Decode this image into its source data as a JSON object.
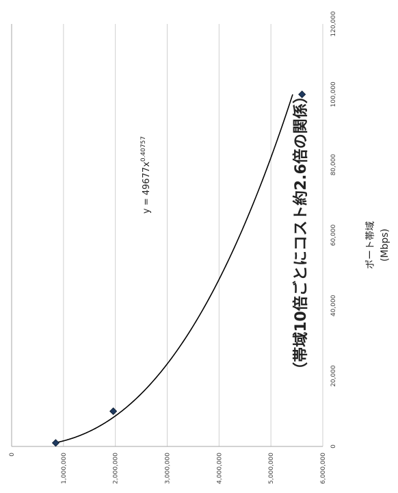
{
  "chart_data": {
    "type": "scatter",
    "orientation": "rotated-90-ccw",
    "title": "（帯域10倍ごとにコスト約2.6倍の関係）",
    "xlabel_line1": "ポート帯域",
    "xlabel_line2": "(Mbps)",
    "ylabel": "",
    "xlim": [
      0,
      120000
    ],
    "ylim": [
      0,
      6000000
    ],
    "x_ticks": [
      0,
      20000,
      40000,
      60000,
      80000,
      100000,
      120000
    ],
    "x_tick_labels": [
      "0",
      "20,000",
      "40,000",
      "60,000",
      "80,000",
      "100,000",
      "120,000"
    ],
    "y_ticks": [
      0,
      1000000,
      2000000,
      3000000,
      4000000,
      5000000,
      6000000
    ],
    "y_tick_labels": [
      "0",
      "1,000,000",
      "2,000,000",
      "3,000,000",
      "4,000,000",
      "5,000,000",
      "6,000,000"
    ],
    "grid": true,
    "series": [
      {
        "points": [
          {
            "x": 1000,
            "y": 850000
          },
          {
            "x": 10000,
            "y": 1960000
          },
          {
            "x": 100000,
            "y": 5600000
          }
        ]
      }
    ],
    "trendline": {
      "type": "power",
      "coefficient": 49677,
      "exponent": 0.40757,
      "x_start": 1000,
      "x_end": 100000,
      "equation_prefix": "y = 49677x",
      "equation_exponent": "0.40757"
    },
    "colors": {
      "marker": "#1f3a5f",
      "trendline": "#000000",
      "grid": "#cfcfcf",
      "axis": "#a6a6a6"
    }
  }
}
